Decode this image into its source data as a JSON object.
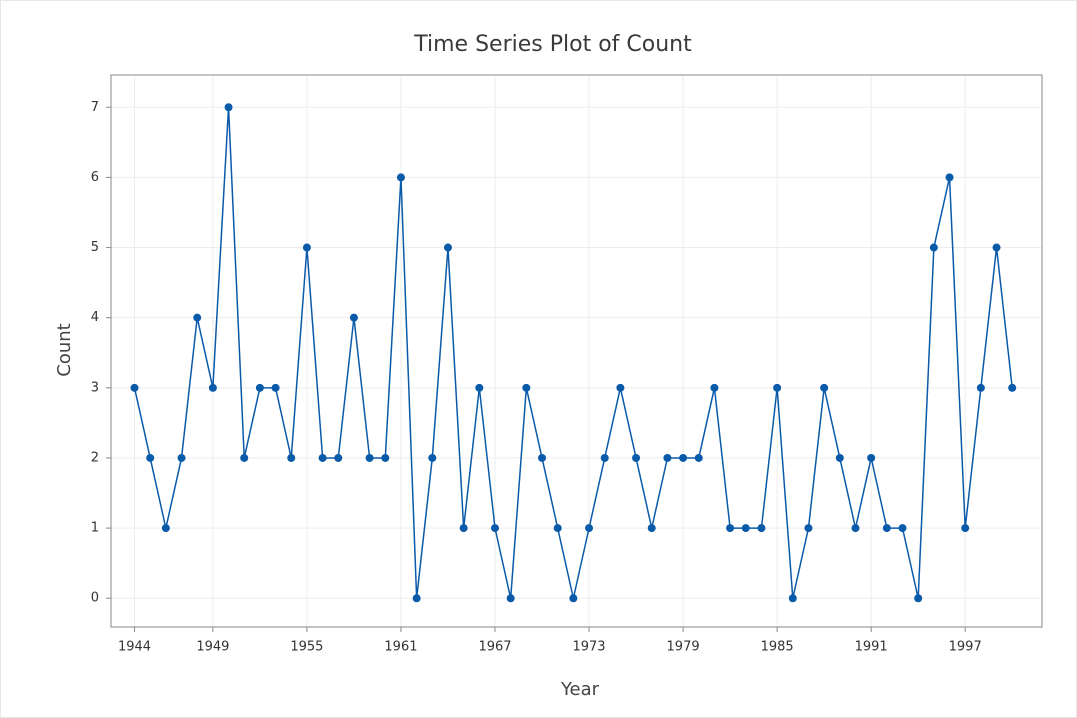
{
  "chart_data": {
    "type": "line",
    "title": "Time Series Plot of Count",
    "x_label": "Year",
    "y_label": "Count",
    "x": [
      1944,
      1945,
      1946,
      1947,
      1948,
      1949,
      1950,
      1951,
      1952,
      1953,
      1954,
      1955,
      1956,
      1957,
      1958,
      1959,
      1960,
      1961,
      1962,
      1963,
      1964,
      1965,
      1966,
      1967,
      1968,
      1969,
      1970,
      1971,
      1972,
      1973,
      1974,
      1975,
      1976,
      1977,
      1978,
      1979,
      1980,
      1981,
      1982,
      1983,
      1984,
      1985,
      1986,
      1987,
      1988,
      1989,
      1990,
      1991,
      1992,
      1993,
      1994,
      1995,
      1996,
      1997,
      1998,
      1999,
      2000
    ],
    "series": [
      {
        "name": "Count",
        "color": "#0a5aaa",
        "values": [
          3,
          2,
          1,
          2,
          4,
          3,
          7,
          2,
          3,
          3,
          2,
          5,
          2,
          2,
          4,
          2,
          2,
          6,
          0,
          2,
          5,
          1,
          3,
          1,
          0,
          3,
          2,
          1,
          0,
          1,
          2,
          3,
          2,
          1,
          2,
          2,
          2,
          3,
          1,
          1,
          1,
          3,
          0,
          1,
          3,
          2,
          1,
          2,
          1,
          1,
          0,
          5,
          6,
          1,
          3,
          5,
          3
        ]
      }
    ],
    "xlim": [
      1942.5,
      2001.9
    ],
    "xticks": [
      1944,
      1949,
      1955,
      1961,
      1967,
      1973,
      1979,
      1985,
      1991,
      1997
    ],
    "ylim": [
      -0.41,
      7.46
    ],
    "yticks": [
      0,
      1,
      2,
      3,
      4,
      5,
      6,
      7
    ],
    "grid": true
  }
}
